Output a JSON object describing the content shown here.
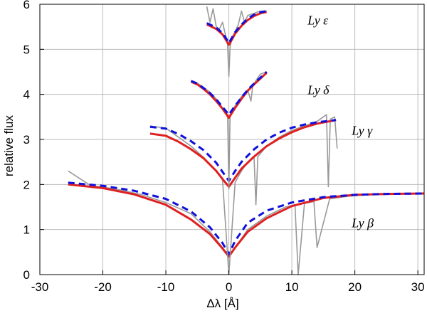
{
  "chart_data": {
    "type": "line",
    "title": "",
    "xlabel": "Δλ [Å]",
    "ylabel": "relative flux",
    "xlim": [
      -30,
      31
    ],
    "ylim": [
      0,
      6
    ],
    "xticks": [
      -30,
      -20,
      -10,
      0,
      10,
      20,
      30
    ],
    "yticks": [
      0,
      1,
      2,
      3,
      4,
      5,
      6
    ],
    "grid": true,
    "colors": {
      "observed": "#999999",
      "model_solid": "#e02020",
      "model_dashed": "#1010dd",
      "grid": "#bbbbbb"
    },
    "series": [
      {
        "name": "Ly β",
        "label": "Ly β",
        "label_pos": [
          19.5,
          1.05
        ],
        "observed": {
          "x": [
            -25.5,
            -22,
            -18,
            -14,
            -10,
            -6,
            -3,
            -1,
            0,
            1,
            3,
            6,
            9,
            10.5,
            11,
            12,
            13.5,
            14,
            16,
            19,
            22,
            26,
            30,
            31
          ],
          "y": [
            2.3,
            1.98,
            1.9,
            1.78,
            1.6,
            1.35,
            0.95,
            0.6,
            0.4,
            0.6,
            1.0,
            1.3,
            1.5,
            1.55,
            0.0,
            1.58,
            1.62,
            0.6,
            1.68,
            1.74,
            1.77,
            1.8,
            1.8,
            1.8
          ]
        },
        "model_solid": {
          "x": [
            -25.5,
            -20,
            -15,
            -10,
            -6,
            -3,
            -1,
            0,
            1,
            3,
            6,
            10,
            15,
            20,
            25,
            31
          ],
          "y": [
            2.0,
            1.92,
            1.78,
            1.55,
            1.22,
            0.9,
            0.58,
            0.4,
            0.6,
            0.95,
            1.25,
            1.52,
            1.7,
            1.77,
            1.79,
            1.8
          ]
        },
        "model_dashed": {
          "x": [
            -25.5,
            -20,
            -15,
            -10,
            -6,
            -3,
            -1,
            0,
            1,
            3,
            6,
            10,
            15,
            20,
            25,
            31
          ],
          "y": [
            2.04,
            1.97,
            1.86,
            1.68,
            1.4,
            1.05,
            0.7,
            0.45,
            0.75,
            1.15,
            1.42,
            1.6,
            1.72,
            1.77,
            1.79,
            1.8
          ]
        }
      },
      {
        "name": "Ly γ",
        "label": "Ly γ",
        "label_pos": [
          19.5,
          3.1
        ],
        "observed": {
          "x": [
            -12.5,
            -10,
            -8,
            -6,
            -4,
            -2,
            -1,
            0,
            1,
            2,
            3,
            4,
            4.3,
            4.6,
            6,
            8,
            10,
            12,
            14,
            15.5,
            15.8,
            16.1,
            16.8,
            17.2
          ],
          "y": [
            3.3,
            3.25,
            3.05,
            2.85,
            2.6,
            2.3,
            2.1,
            0.0,
            2.05,
            2.3,
            2.5,
            2.6,
            1.55,
            2.62,
            2.85,
            3.05,
            3.2,
            3.3,
            3.4,
            3.55,
            1.95,
            3.45,
            3.5,
            2.8
          ]
        },
        "model_solid": {
          "x": [
            -12.5,
            -10,
            -8,
            -6,
            -4,
            -2,
            -1,
            0,
            1,
            2,
            4,
            6,
            8,
            10,
            12,
            14,
            17
          ],
          "y": [
            3.13,
            3.08,
            2.95,
            2.78,
            2.58,
            2.3,
            2.12,
            1.95,
            2.15,
            2.35,
            2.62,
            2.85,
            3.02,
            3.16,
            3.27,
            3.35,
            3.43
          ]
        },
        "model_dashed": {
          "x": [
            -12.5,
            -10,
            -8,
            -6,
            -4,
            -2,
            -1,
            0,
            1,
            2,
            4,
            6,
            8,
            10,
            12,
            14,
            17
          ],
          "y": [
            3.28,
            3.24,
            3.12,
            2.96,
            2.76,
            2.48,
            2.28,
            2.08,
            2.3,
            2.5,
            2.78,
            3.0,
            3.15,
            3.26,
            3.33,
            3.38,
            3.43
          ]
        }
      },
      {
        "name": "Ly δ",
        "label": "Ly δ",
        "label_pos": [
          12.5,
          4.0
        ],
        "observed": {
          "x": [
            -6,
            -5,
            -4,
            -3,
            -2,
            -1,
            -0.2,
            0,
            0.2,
            1,
            2,
            3,
            3.5,
            3.8,
            4.5,
            5,
            6
          ],
          "y": [
            4.3,
            4.25,
            4.15,
            4.05,
            3.9,
            3.7,
            3.55,
            1.9,
            3.55,
            3.75,
            3.95,
            4.1,
            3.85,
            4.2,
            4.35,
            4.45,
            4.5
          ]
        },
        "model_solid": {
          "x": [
            -6,
            -5,
            -4,
            -3,
            -2,
            -1,
            0,
            1,
            2,
            3,
            4,
            5,
            6
          ],
          "y": [
            4.28,
            4.22,
            4.12,
            4.0,
            3.85,
            3.68,
            3.48,
            3.7,
            3.9,
            4.08,
            4.22,
            4.35,
            4.48
          ]
        },
        "model_dashed": {
          "x": [
            -6,
            -5,
            -4,
            -3,
            -2,
            -1,
            0,
            1,
            2,
            3,
            4,
            5,
            6
          ],
          "y": [
            4.3,
            4.24,
            4.14,
            4.03,
            3.89,
            3.72,
            3.55,
            3.75,
            3.93,
            4.1,
            4.24,
            4.37,
            4.5
          ]
        }
      },
      {
        "name": "Ly ε",
        "label": "Ly ε",
        "label_pos": [
          12.5,
          5.55
        ],
        "observed": {
          "x": [
            -3.5,
            -3,
            -2.5,
            -2,
            -1.5,
            -1,
            -0.5,
            -0.2,
            0,
            0.2,
            0.5,
            1,
            1.5,
            2,
            2.5,
            3,
            4,
            5,
            6
          ],
          "y": [
            5.95,
            5.6,
            5.9,
            5.5,
            5.45,
            5.6,
            5.3,
            5.1,
            4.4,
            5.05,
            5.25,
            5.4,
            5.55,
            5.85,
            5.6,
            5.75,
            5.8,
            5.85,
            5.85
          ]
        },
        "model_solid": {
          "x": [
            -3.5,
            -3,
            -2,
            -1,
            -0.5,
            0,
            0.5,
            1,
            2,
            3,
            4,
            5,
            6
          ],
          "y": [
            5.55,
            5.52,
            5.45,
            5.33,
            5.22,
            5.1,
            5.22,
            5.35,
            5.52,
            5.65,
            5.74,
            5.8,
            5.83
          ]
        },
        "model_dashed": {
          "x": [
            -3.5,
            -3,
            -2,
            -1,
            -0.5,
            0,
            0.5,
            1,
            2,
            3,
            4,
            5,
            6
          ],
          "y": [
            5.58,
            5.55,
            5.48,
            5.36,
            5.26,
            5.14,
            5.26,
            5.38,
            5.55,
            5.68,
            5.77,
            5.82,
            5.85
          ]
        }
      }
    ]
  }
}
